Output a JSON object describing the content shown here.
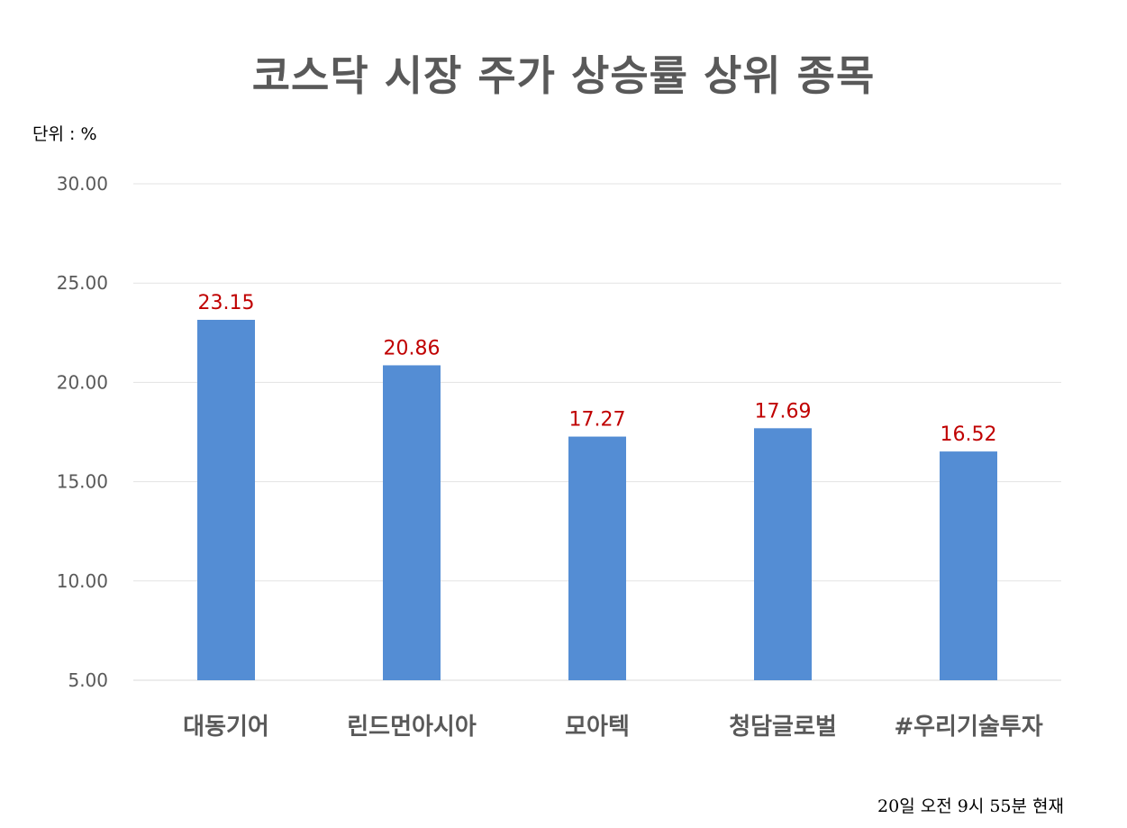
{
  "chart_data": {
    "type": "bar",
    "title": "코스닥 시장 주가 상승률 상위 종목",
    "unit_label": "단위 : %",
    "footnote": "20일  오전  9시 55분 현재",
    "categories": [
      "대동기어",
      "린드먼아시아",
      "모아텍",
      "청담글로벌",
      "#우리기술투자"
    ],
    "values": [
      23.15,
      20.86,
      17.27,
      17.69,
      16.52
    ],
    "value_labels": [
      "23.15",
      "20.86",
      "17.27",
      "17.69",
      "16.52"
    ],
    "ylim": [
      5,
      30
    ],
    "yticks": [
      "5.00",
      "10.00",
      "15.00",
      "20.00",
      "25.00",
      "30.00"
    ],
    "ytick_values": [
      5,
      10,
      15,
      20,
      25,
      30
    ],
    "grid": true,
    "bar_color": "#548dd4",
    "label_color": "#c00000"
  }
}
